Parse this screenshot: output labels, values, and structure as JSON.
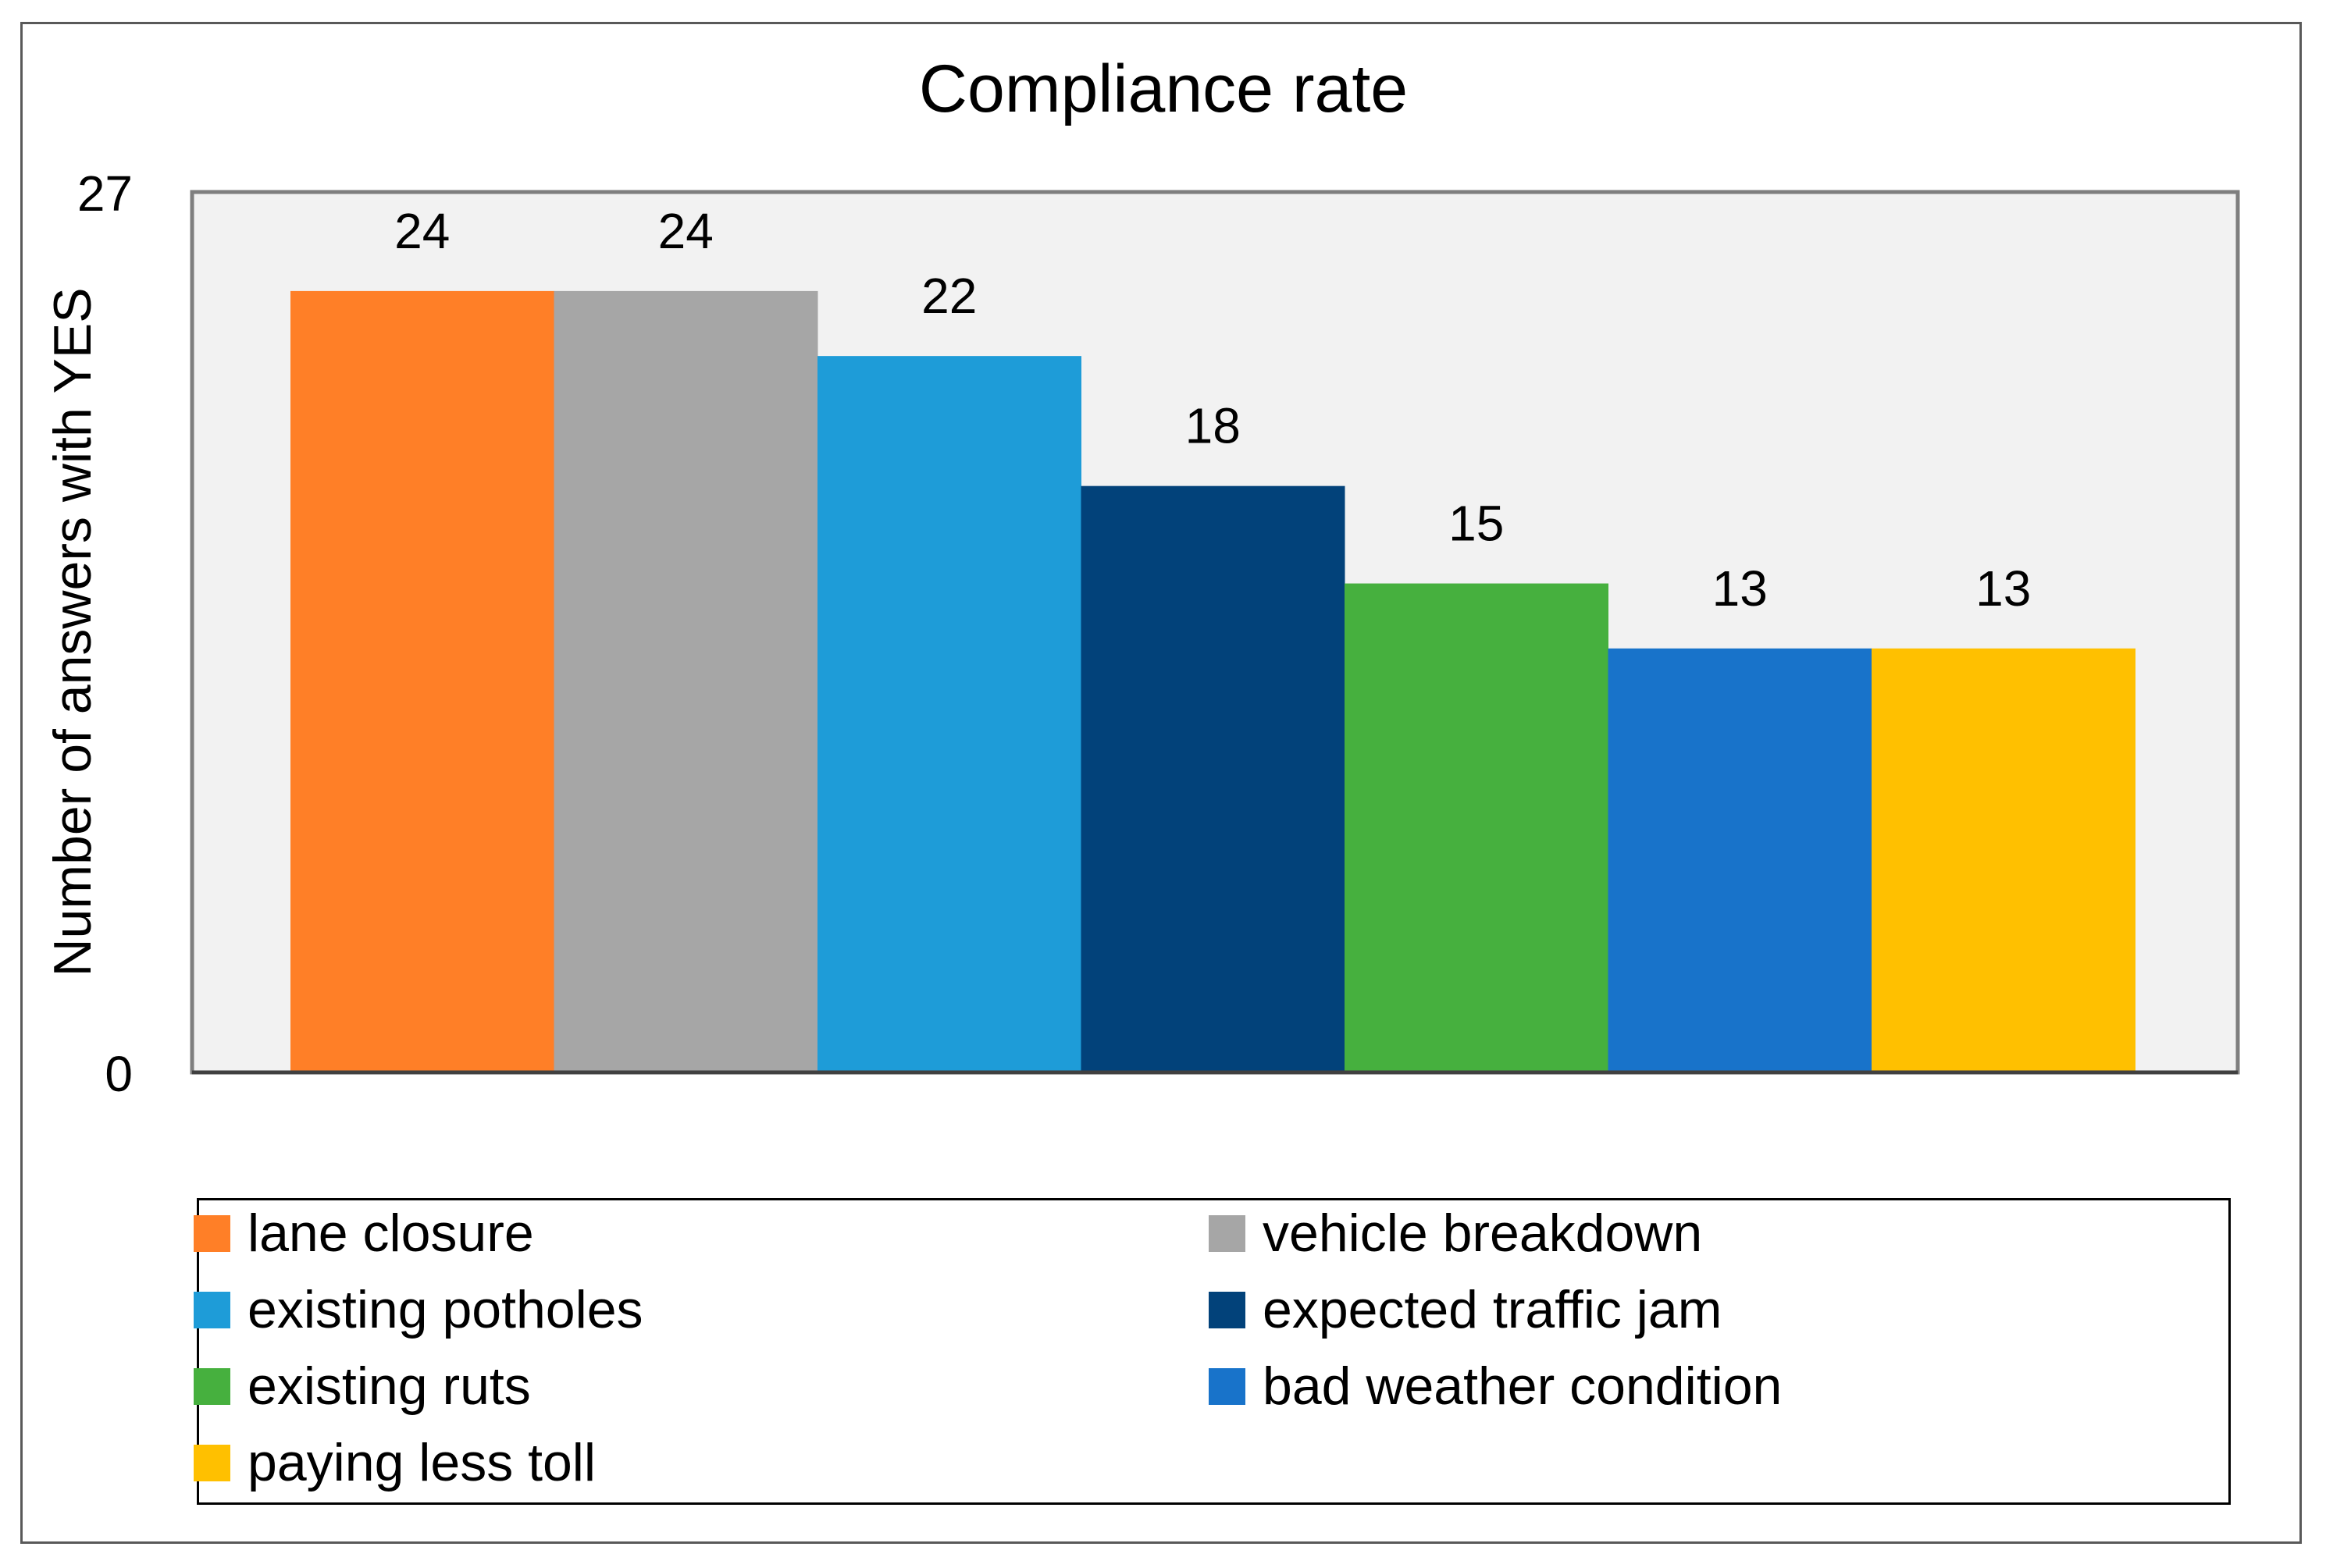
{
  "chart_data": {
    "type": "bar",
    "title": "Compliance rate",
    "ylabel": "Number of answers with YES",
    "xlabel": "",
    "ylim": [
      0,
      27
    ],
    "y_ticks": [
      "0",
      "27"
    ],
    "grid": false,
    "legend_position": "bottom",
    "categories": [
      "lane closure",
      "vehicle breakdown",
      "existing potholes",
      "expected traffic jam",
      "existing ruts",
      "bad weather condition",
      "paying less toll"
    ],
    "values": [
      24,
      24,
      22,
      18,
      15,
      13,
      13
    ],
    "colors": [
      "#FF7F27",
      "#A6A6A6",
      "#1E9CD8",
      "#02427A",
      "#46B03E",
      "#1873CA",
      "#FFC000"
    ],
    "plot_background": "#F2F2F2"
  }
}
